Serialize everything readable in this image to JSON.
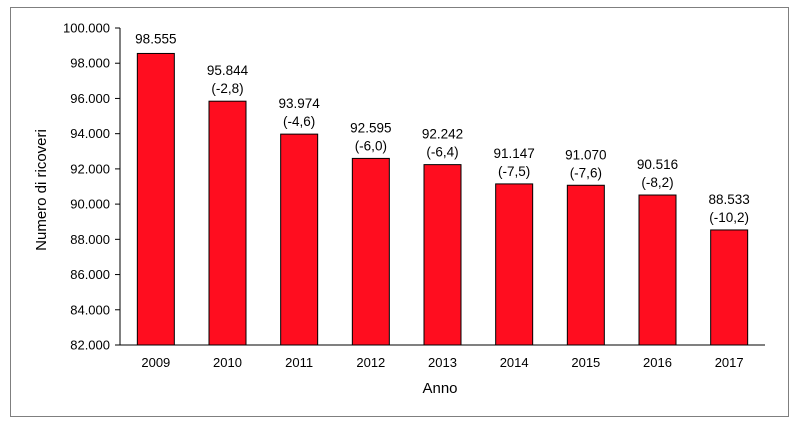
{
  "chart_data": {
    "type": "bar",
    "title": "",
    "xlabel": "Anno",
    "ylabel": "Numero di ricoveri",
    "ylim": [
      82000,
      100000
    ],
    "yticks": [
      "82.000",
      "84.000",
      "86.000",
      "88.000",
      "90.000",
      "92.000",
      "94.000",
      "96.000",
      "98.000",
      "100.000"
    ],
    "categories": [
      "2009",
      "2010",
      "2011",
      "2012",
      "2013",
      "2014",
      "2015",
      "2016",
      "2017"
    ],
    "values": [
      98555,
      95844,
      93974,
      92595,
      92242,
      91147,
      91070,
      90516,
      88533
    ],
    "value_labels": [
      "98.555",
      "95.844",
      "93.974",
      "92.595",
      "92.242",
      "91.147",
      "91.070",
      "90.516",
      "88.533"
    ],
    "change_labels": [
      "",
      "(-2,8)",
      "(-4,6)",
      "(-6,0)",
      "(-6,4)",
      "(-7,5)",
      "(-7,6)",
      "(-8,2)",
      "(-10,2)"
    ],
    "bar_color": "#ff0d1f",
    "bar_outline": "#000000",
    "grid": false,
    "legend": "none"
  }
}
